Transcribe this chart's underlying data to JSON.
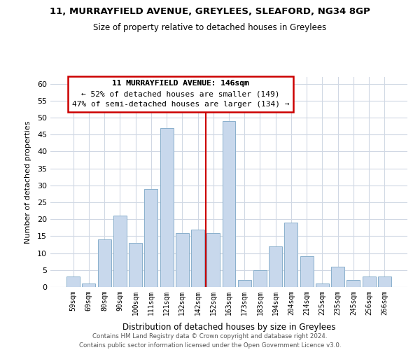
{
  "title1": "11, MURRAYFIELD AVENUE, GREYLEES, SLEAFORD, NG34 8GP",
  "title2": "Size of property relative to detached houses in Greylees",
  "xlabel": "Distribution of detached houses by size in Greylees",
  "ylabel": "Number of detached properties",
  "categories": [
    "59sqm",
    "69sqm",
    "80sqm",
    "90sqm",
    "100sqm",
    "111sqm",
    "121sqm",
    "132sqm",
    "142sqm",
    "152sqm",
    "163sqm",
    "173sqm",
    "183sqm",
    "194sqm",
    "204sqm",
    "214sqm",
    "225sqm",
    "235sqm",
    "245sqm",
    "256sqm",
    "266sqm"
  ],
  "values": [
    3,
    1,
    14,
    21,
    13,
    29,
    47,
    16,
    17,
    16,
    49,
    2,
    5,
    12,
    19,
    9,
    1,
    6,
    2,
    3,
    3
  ],
  "bar_color": "#c8d8ec",
  "bar_edge_color": "#8ab0cc",
  "vline_x_index": 8,
  "vline_color": "#cc0000",
  "ylim": [
    0,
    62
  ],
  "yticks": [
    0,
    5,
    10,
    15,
    20,
    25,
    30,
    35,
    40,
    45,
    50,
    55,
    60
  ],
  "annotation_title": "11 MURRAYFIELD AVENUE: 146sqm",
  "annotation_line1": "← 52% of detached houses are smaller (149)",
  "annotation_line2": "47% of semi-detached houses are larger (134) →",
  "annotation_box_color": "#ffffff",
  "annotation_box_edge": "#cc0000",
  "footer1": "Contains HM Land Registry data © Crown copyright and database right 2024.",
  "footer2": "Contains public sector information licensed under the Open Government Licence v3.0.",
  "background_color": "#ffffff",
  "grid_color": "#d0d8e4"
}
